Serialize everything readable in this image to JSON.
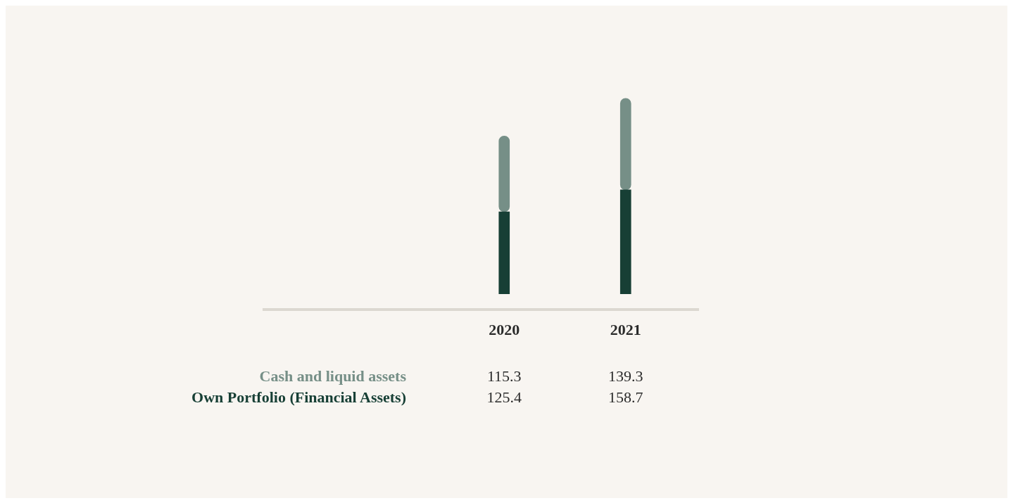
{
  "chart_data": {
    "type": "bar",
    "stacked": true,
    "data_labels": true,
    "categories": [
      "2020",
      "2021"
    ],
    "series": [
      {
        "name": "Own Portfolio (Financial Assets)",
        "color": "#173f35",
        "values": [
          125.4,
          158.7
        ]
      },
      {
        "name": "Cash and liquid assets",
        "color": "#768f87",
        "values": [
          115.3,
          139.3
        ]
      }
    ]
  }
}
